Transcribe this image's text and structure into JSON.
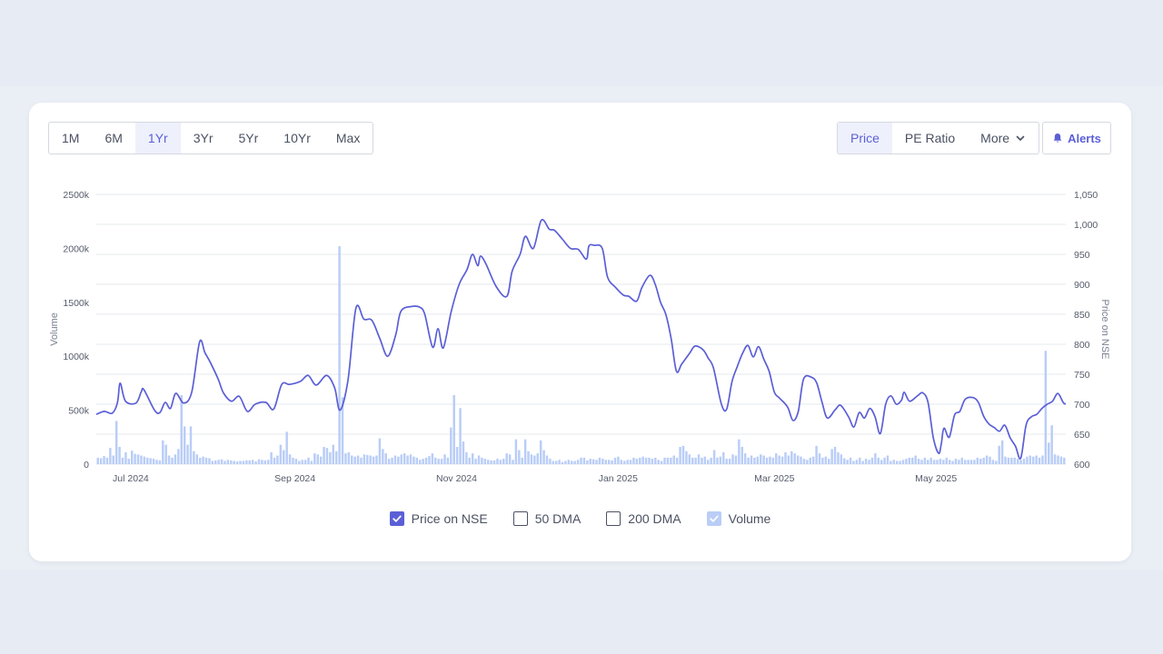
{
  "toolbar": {
    "ranges": [
      "1M",
      "6M",
      "1Yr",
      "3Yr",
      "5Yr",
      "10Yr",
      "Max"
    ],
    "active_range": "1Yr",
    "views": [
      "Price",
      "PE Ratio"
    ],
    "more_label": "More",
    "alerts_label": "Alerts"
  },
  "legend": {
    "price": "Price on NSE",
    "dma50": "50 DMA",
    "dma200": "200 DMA",
    "volume": "Volume"
  },
  "colors": {
    "price_line": "#5b5fd6",
    "volume_bar": "#b9cdf7",
    "accent": "#5b5fd6"
  },
  "chart_data": {
    "type": "line",
    "title": "",
    "xlabel": "",
    "ylabel": "Volume",
    "y2label": "Price on NSE",
    "ylim": [
      0,
      2500
    ],
    "y2lim": [
      600,
      1050
    ],
    "x_tick_labels": [
      "Jul 2024",
      "Sep 2024",
      "Nov 2024",
      "Jan 2025",
      "Mar 2025",
      "May 2025"
    ],
    "y_tick_labels": [
      "0",
      "500k",
      "1000k",
      "1500k",
      "2000k",
      "2500k"
    ],
    "y2_tick_labels": [
      "600",
      "650",
      "700",
      "750",
      "800",
      "850",
      "900",
      "950",
      "1,000",
      "1,050"
    ],
    "x_range_days": [
      0,
      366
    ],
    "series": [
      {
        "name": "Price on NSE",
        "axis": "right",
        "points": [
          [
            0,
            683
          ],
          [
            3,
            688
          ],
          [
            6,
            685
          ],
          [
            8,
            703
          ],
          [
            9,
            735
          ],
          [
            11,
            705
          ],
          [
            15,
            702
          ],
          [
            17,
            721
          ],
          [
            18,
            724
          ],
          [
            22,
            690
          ],
          [
            24,
            686
          ],
          [
            26,
            703
          ],
          [
            28,
            693
          ],
          [
            30,
            718
          ],
          [
            33,
            702
          ],
          [
            36,
            720
          ],
          [
            39,
            804
          ],
          [
            41,
            786
          ],
          [
            43,
            770
          ],
          [
            46,
            742
          ],
          [
            48,
            719
          ],
          [
            51,
            705
          ],
          [
            54,
            713
          ],
          [
            57,
            688
          ],
          [
            60,
            700
          ],
          [
            64,
            703
          ],
          [
            67,
            692
          ],
          [
            70,
            733
          ],
          [
            73,
            733
          ],
          [
            77,
            738
          ],
          [
            80,
            748
          ],
          [
            83,
            732
          ],
          [
            87,
            748
          ],
          [
            90,
            727
          ],
          [
            92,
            690
          ],
          [
            95,
            740
          ],
          [
            98,
            860
          ],
          [
            101,
            842
          ],
          [
            104,
            840
          ],
          [
            107,
            810
          ],
          [
            110,
            780
          ],
          [
            113,
            815
          ],
          [
            115,
            855
          ],
          [
            119,
            863
          ],
          [
            122,
            862
          ],
          [
            124,
            850
          ],
          [
            127,
            795
          ],
          [
            129,
            826
          ],
          [
            131,
            794
          ],
          [
            134,
            855
          ],
          [
            137,
            900
          ],
          [
            140,
            925
          ],
          [
            142,
            950
          ],
          [
            144,
            931
          ],
          [
            145,
            947
          ],
          [
            147,
            935
          ],
          [
            151,
            896
          ],
          [
            155,
            880
          ],
          [
            157,
            922
          ],
          [
            160,
            950
          ],
          [
            162,
            980
          ],
          [
            165,
            960
          ],
          [
            168,
            1007
          ],
          [
            171,
            992
          ],
          [
            173,
            990
          ],
          [
            176,
            975
          ],
          [
            179,
            960
          ],
          [
            182,
            958
          ],
          [
            185,
            942
          ],
          [
            186,
            964
          ],
          [
            188,
            965
          ],
          [
            191,
            960
          ],
          [
            193,
            912
          ],
          [
            196,
            895
          ],
          [
            199,
            882
          ],
          [
            201,
            880
          ],
          [
            204,
            872
          ],
          [
            206,
            895
          ],
          [
            209,
            915
          ],
          [
            211,
            900
          ],
          [
            213,
            870
          ],
          [
            215,
            850
          ],
          [
            217,
            810
          ],
          [
            219,
            755
          ],
          [
            221,
            767
          ],
          [
            224,
            785
          ],
          [
            226,
            797
          ],
          [
            229,
            791
          ],
          [
            231,
            777
          ],
          [
            233,
            760
          ],
          [
            236,
            700
          ],
          [
            238,
            692
          ],
          [
            240,
            738
          ],
          [
            242,
            763
          ],
          [
            244,
            785
          ],
          [
            246,
            798
          ],
          [
            248,
            779
          ],
          [
            250,
            796
          ],
          [
            252,
            775
          ],
          [
            254,
            755
          ],
          [
            256,
            720
          ],
          [
            258,
            710
          ],
          [
            261,
            695
          ],
          [
            263,
            673
          ],
          [
            265,
            688
          ],
          [
            267,
            742
          ],
          [
            270,
            745
          ],
          [
            272,
            735
          ],
          [
            274,
            703
          ],
          [
            276,
            677
          ],
          [
            279,
            691
          ],
          [
            281,
            698
          ],
          [
            284,
            679
          ],
          [
            286,
            662
          ],
          [
            288,
            686
          ],
          [
            290,
            677
          ],
          [
            292,
            693
          ],
          [
            294,
            679
          ],
          [
            296,
            651
          ],
          [
            298,
            700
          ],
          [
            300,
            714
          ],
          [
            302,
            700
          ],
          [
            304,
            707
          ],
          [
            305,
            720
          ],
          [
            307,
            705
          ],
          [
            310,
            714
          ],
          [
            312,
            719
          ],
          [
            314,
            703
          ],
          [
            316,
            644
          ],
          [
            318,
            618
          ],
          [
            319,
            634
          ],
          [
            320,
            660
          ],
          [
            322,
            645
          ],
          [
            324,
            682
          ],
          [
            326,
            688
          ],
          [
            328,
            708
          ],
          [
            331,
            711
          ],
          [
            333,
            703
          ],
          [
            335,
            680
          ],
          [
            337,
            667
          ],
          [
            339,
            661
          ],
          [
            341,
            655
          ],
          [
            343,
            665
          ],
          [
            345,
            644
          ],
          [
            347,
            630
          ],
          [
            349,
            610
          ],
          [
            351,
            665
          ],
          [
            353,
            679
          ],
          [
            355,
            683
          ],
          [
            357,
            693
          ],
          [
            359,
            700
          ],
          [
            361,
            705
          ],
          [
            363,
            718
          ],
          [
            365,
            703
          ],
          [
            366,
            700
          ]
        ]
      },
      {
        "name": "Volume",
        "axis": "left",
        "description": "Daily volume bars; typical 30k-150k with spikes",
        "values": [
          60,
          55,
          75,
          60,
          150,
          80,
          400,
          160,
          60,
          110,
          50,
          125,
          95,
          90,
          80,
          70,
          60,
          55,
          50,
          40,
          35,
          220,
          180,
          80,
          60,
          90,
          140,
          640,
          350,
          180,
          350,
          120,
          90,
          60,
          70,
          60,
          55,
          30,
          35,
          40,
          45,
          30,
          40,
          35,
          30,
          25,
          30,
          30,
          35,
          35,
          40,
          25,
          45,
          40,
          35,
          40,
          110,
          60,
          80,
          180,
          130,
          300,
          90,
          60,
          50,
          30,
          40,
          40,
          60,
          30,
          100,
          90,
          70,
          160,
          150,
          110,
          180,
          120,
          2020,
          620,
          100,
          110,
          80,
          70,
          80,
          60,
          90,
          85,
          80,
          70,
          80,
          240,
          140,
          100,
          50,
          60,
          80,
          70,
          90,
          100,
          80,
          90,
          70,
          60,
          40,
          50,
          60,
          75,
          100,
          60,
          50,
          50,
          90,
          60,
          340,
          640,
          160,
          520,
          210,
          110,
          60,
          100,
          50,
          80,
          60,
          50,
          40,
          35,
          35,
          50,
          40,
          50,
          100,
          90,
          40,
          230,
          130,
          60,
          230,
          120,
          90,
          80,
          100,
          220,
          130,
          80,
          50,
          30,
          30,
          40,
          20,
          30,
          40,
          30,
          30,
          40,
          60,
          60,
          35,
          50,
          45,
          40,
          60,
          50,
          40,
          40,
          35,
          60,
          70,
          40,
          30,
          40,
          40,
          60,
          50,
          60,
          70,
          60,
          60,
          50,
          60,
          40,
          30,
          60,
          60,
          60,
          80,
          60,
          160,
          170,
          120,
          90,
          60,
          60,
          90,
          60,
          70,
          40,
          60,
          130,
          60,
          70,
          110,
          50,
          50,
          90,
          80,
          230,
          160,
          100,
          60,
          80,
          60,
          70,
          90,
          80,
          60,
          70,
          60,
          100,
          80,
          70,
          110,
          80,
          120,
          100,
          80,
          70,
          50,
          40,
          60,
          70,
          170,
          100,
          60,
          70,
          50,
          140,
          160,
          110,
          90,
          55,
          40,
          60,
          30,
          40,
          60,
          30,
          50,
          40,
          60,
          100,
          60,
          40,
          60,
          80,
          30,
          40,
          30,
          30,
          40,
          50,
          60,
          60,
          80,
          50,
          40,
          60,
          40,
          60,
          40,
          40,
          50,
          40,
          60,
          40,
          30,
          50,
          40,
          60,
          40,
          40,
          40,
          40,
          60,
          50,
          60,
          80,
          70,
          40,
          30,
          170,
          220,
          70,
          60,
          60,
          60,
          50,
          40,
          50,
          70,
          80,
          70,
          80,
          60,
          80,
          1050,
          200,
          360,
          90,
          80,
          70,
          60
        ]
      }
    ],
    "legend_position": "bottom-center",
    "grid": true
  }
}
